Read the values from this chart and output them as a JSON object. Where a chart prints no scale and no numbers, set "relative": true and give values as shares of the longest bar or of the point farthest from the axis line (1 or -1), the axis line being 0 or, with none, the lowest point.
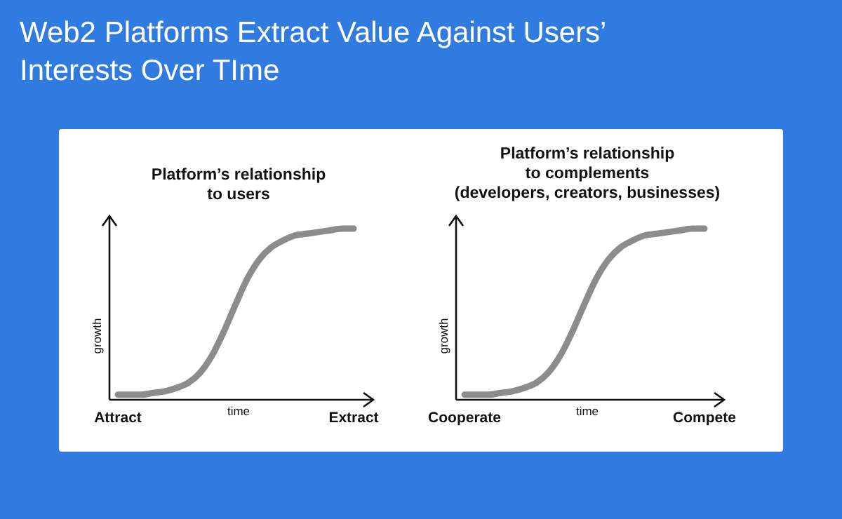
{
  "chart_data": [
    {
      "type": "other",
      "title": "Web2 Platforms Extract Value Against Users’\nInterests Over TIme"
    },
    {
      "type": "line",
      "title": "Platform’s relationship\nto users",
      "xlabel": "time",
      "ylabel": "growth",
      "relative": true,
      "color": "#8c8c8c",
      "categories": [
        "Attract",
        null,
        null,
        null,
        null,
        null,
        null,
        null,
        null,
        null,
        null,
        null,
        null,
        null,
        null,
        null,
        null,
        null,
        null,
        null,
        "Extract"
      ],
      "values": [
        0.03,
        0.03,
        0.03,
        0.04,
        0.05,
        0.07,
        0.1,
        0.16,
        0.26,
        0.4,
        0.56,
        0.71,
        0.82,
        0.89,
        0.93,
        0.96,
        0.97,
        0.98,
        0.99,
        1,
        1
      ]
    },
    {
      "type": "line",
      "title": "Platform’s relationship\nto complements\n(developers, creators, businesses)",
      "xlabel": "time",
      "ylabel": "growth",
      "relative": true,
      "color": "#8c8c8c",
      "categories": [
        "Cooperate",
        null,
        null,
        null,
        null,
        null,
        null,
        null,
        null,
        null,
        null,
        null,
        null,
        null,
        null,
        null,
        null,
        null,
        null,
        null,
        "Compete"
      ],
      "values": [
        0.03,
        0.03,
        0.03,
        0.04,
        0.05,
        0.07,
        0.1,
        0.16,
        0.26,
        0.4,
        0.56,
        0.71,
        0.82,
        0.89,
        0.93,
        0.96,
        0.97,
        0.98,
        0.99,
        1,
        1
      ]
    }
  ]
}
